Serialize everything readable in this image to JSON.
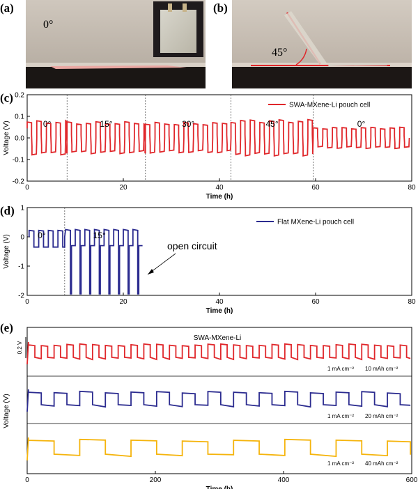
{
  "panel_labels": {
    "a": "(a)",
    "b": "(b)",
    "c": "(c)",
    "d": "(d)",
    "e": "(e)"
  },
  "photos": {
    "a_angle": "0°",
    "b_angle": "45°"
  },
  "colors": {
    "red": "#e0272b",
    "blue": "#2b2b8f",
    "yellow": "#f5b40c"
  },
  "chart_data": [
    {
      "id": "c",
      "type": "line",
      "xlabel": "Time (h)",
      "ylabel": "Voltage (V)",
      "xlim": [
        0,
        80
      ],
      "ylim": [
        -0.2,
        0.2
      ],
      "xticks": [
        "0",
        "20",
        "40",
        "60",
        "80"
      ],
      "yticks": [
        "-0.2",
        "-0.1",
        "0.0",
        "0.1",
        "0.2"
      ],
      "legend": "SWA-MXene-Li pouch cell",
      "legend_position": "top-right",
      "segments": [
        {
          "label": "0°",
          "x_start": 0,
          "x_end": 8.3,
          "amplitude": 0.08
        },
        {
          "label": "15°",
          "x_start": 8.3,
          "x_end": 24.6,
          "amplitude": 0.075
        },
        {
          "label": "30°",
          "x_start": 24.6,
          "x_end": 42.4,
          "amplitude": 0.072
        },
        {
          "label": "45°",
          "x_start": 42.4,
          "x_end": 59.5,
          "amplitude": 0.085
        },
        {
          "label": "0°",
          "x_start": 59.5,
          "x_end": 79.5,
          "amplitude": 0.05
        }
      ],
      "cycle_period_h": 2.0,
      "series": [
        {
          "name": "SWA-MXene-Li pouch cell",
          "color": "#e0272b"
        }
      ]
    },
    {
      "id": "d",
      "type": "line",
      "xlabel": "Time (h)",
      "ylabel": "Voltage (V)",
      "xlim": [
        0,
        80
      ],
      "ylim": [
        -2,
        1
      ],
      "xticks": [
        "0",
        "20",
        "40",
        "60",
        "80"
      ],
      "yticks": [
        "-2",
        "-1",
        "0",
        "1"
      ],
      "legend": "Flat MXene-Li pouch cell",
      "legend_position": "top-right",
      "segments": [
        {
          "label": "0°",
          "x_start": 0,
          "x_end": 7.8
        },
        {
          "label": "15°",
          "x_start": 7.8,
          "x_end": 24
        }
      ],
      "annotation": "open circuit",
      "cycle_period_h": 2.0,
      "series": [
        {
          "name": "Flat MXene-Li pouch cell",
          "color": "#2b2b8f"
        }
      ]
    },
    {
      "id": "e",
      "type": "line",
      "title": "SWA-MXene-Li",
      "xlabel": "Time (h)",
      "ylabel": "Voltage (V)",
      "xlim": [
        0,
        600
      ],
      "xticks": [
        "0",
        "200",
        "400",
        "600"
      ],
      "scale_bar": "0.2 V",
      "series": [
        {
          "label_current": "1 mA cm⁻²",
          "label_capacity": "10 mAh cm⁻²",
          "period_h": 20,
          "color": "#e0272b"
        },
        {
          "label_current": "1 mA cm⁻²",
          "label_capacity": "20 mAh cm⁻²",
          "period_h": 40,
          "color": "#2b2b8f"
        },
        {
          "label_current": "1 mA cm⁻²",
          "label_capacity": "40 mAh cm⁻²",
          "period_h": 80,
          "color": "#f5b40c"
        }
      ]
    }
  ]
}
